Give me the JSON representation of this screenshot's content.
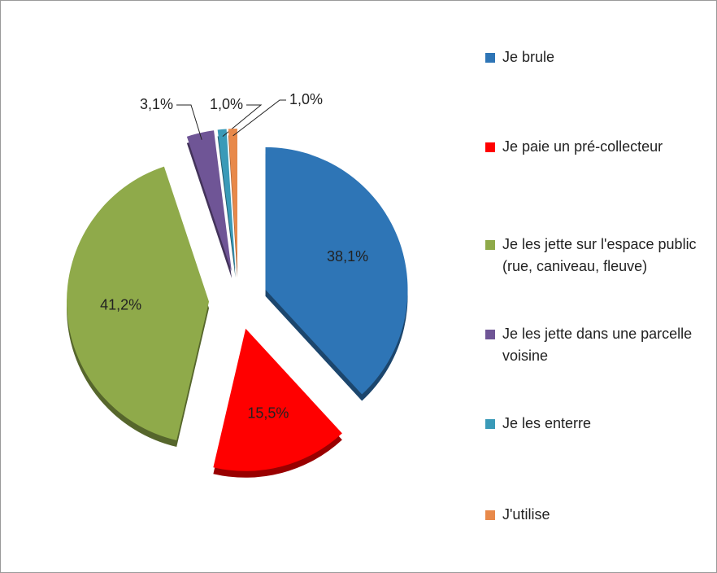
{
  "chart_data": {
    "type": "pie",
    "categories": [
      "Je brule",
      "Je paie un pré-collecteur",
      "Je les jette sur l'espace public (rue, caniveau, fleuve)",
      "Je les jette dans une parcelle voisine",
      "Je les enterre",
      "J'utilise"
    ],
    "values": [
      38.1,
      15.5,
      41.2,
      3.1,
      1.0,
      1.0
    ],
    "value_labels": [
      "38,1%",
      "15,5%",
      "41,2%",
      "3,1%",
      "1,0%",
      "1,0%"
    ],
    "colors": [
      "#2e75b6",
      "#ff0000",
      "#8faa4a",
      "#6f5596",
      "#3a9ab8",
      "#e8894a"
    ],
    "legend": "right"
  }
}
